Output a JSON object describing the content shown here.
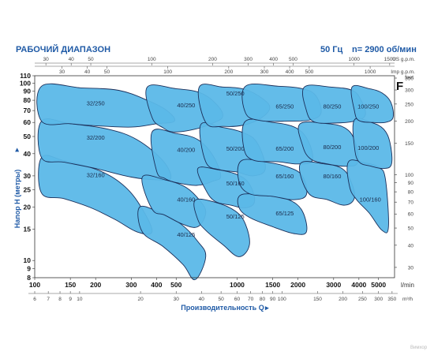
{
  "header": {
    "title": "РАБОЧИЙ ДИАПАЗОН",
    "frequency": "50 Гц",
    "speed": "n= 2900 об/мин",
    "corner_letter": "F",
    "watermark": "Вимхор"
  },
  "chart_data": {
    "type": "area",
    "xscale": "log",
    "yscale": "log",
    "x_unit": "l/min",
    "y_unit": "m",
    "xlim": [
      100,
      6000
    ],
    "ylim": [
      8,
      110
    ],
    "xlabel": "Производительность Q",
    "ylabel": "Напор H (метры)",
    "grid": false,
    "bottom_ticks_lmin": [
      100,
      150,
      200,
      300,
      400,
      500,
      1000,
      1500,
      2000,
      3000,
      4000,
      5000
    ],
    "bottom_unit_label": "l/min",
    "m3h_ticks": [
      6,
      7,
      8,
      9,
      10,
      20,
      30,
      40,
      50,
      60,
      70,
      80,
      90,
      100,
      150,
      200,
      250,
      300,
      350
    ],
    "m3h_label": "m³/h",
    "us_gpm_ticks": [
      30,
      40,
      50,
      100,
      200,
      300,
      400,
      500,
      1000,
      1500
    ],
    "us_gpm_label": "US g.p.m.",
    "imp_gpm_ticks": [
      20,
      30,
      40,
      50,
      100,
      200,
      300,
      400,
      500,
      1000
    ],
    "imp_gpm_label": "Imp g.p.m.",
    "left_ticks_m": [
      8,
      9,
      10,
      15,
      20,
      25,
      30,
      40,
      50,
      60,
      70,
      80,
      90,
      100,
      110
    ],
    "feet_ticks": [
      30,
      40,
      50,
      60,
      70,
      80,
      90,
      100,
      150,
      200,
      250,
      300,
      350
    ],
    "feet_label": "feet",
    "regions": [
      {
        "label": "32/160",
        "polygon": [
          [
            108,
            38
          ],
          [
            140,
            36.5
          ],
          [
            210,
            32
          ],
          [
            280,
            26
          ],
          [
            340,
            19.5
          ],
          [
            380,
            14.5
          ],
          [
            320,
            14.5
          ],
          [
            250,
            17
          ],
          [
            190,
            19.8
          ],
          [
            140,
            22.3
          ],
          [
            108,
            24
          ]
        ]
      },
      {
        "label": "32/200",
        "polygon": [
          [
            108,
            61
          ],
          [
            150,
            59
          ],
          [
            230,
            55
          ],
          [
            320,
            48
          ],
          [
            430,
            36.5
          ],
          [
            470,
            29
          ],
          [
            400,
            28.5
          ],
          [
            300,
            29.5
          ],
          [
            200,
            33
          ],
          [
            140,
            35.8
          ],
          [
            108,
            38
          ]
        ]
      },
      {
        "label": "32/250",
        "polygon": [
          [
            108,
            96
          ],
          [
            170,
            94
          ],
          [
            260,
            91
          ],
          [
            360,
            80
          ],
          [
            450,
            70
          ],
          [
            490,
            61
          ],
          [
            400,
            59
          ],
          [
            300,
            56.5
          ],
          [
            200,
            57.5
          ],
          [
            150,
            59
          ],
          [
            108,
            61
          ]
        ]
      },
      {
        "label": "40/125",
        "polygon": [
          [
            330,
            20
          ],
          [
            420,
            18.5
          ],
          [
            530,
            16
          ],
          [
            640,
            12.8
          ],
          [
            700,
            10.5
          ],
          [
            620,
            7.8
          ],
          [
            540,
            9.5
          ],
          [
            430,
            12
          ],
          [
            340,
            14.5
          ]
        ]
      },
      {
        "label": "40/160",
        "polygon": [
          [
            340,
            29.5
          ],
          [
            440,
            28.5
          ],
          [
            560,
            25.8
          ],
          [
            660,
            21.5
          ],
          [
            700,
            18.5
          ],
          [
            640,
            15.5
          ],
          [
            540,
            16
          ],
          [
            440,
            18
          ],
          [
            380,
            19.5
          ]
        ]
      },
      {
        "label": "40/200",
        "polygon": [
          [
            380,
            53
          ],
          [
            500,
            52
          ],
          [
            640,
            48
          ],
          [
            760,
            39
          ],
          [
            830,
            30
          ],
          [
            760,
            28
          ],
          [
            630,
            26.5
          ],
          [
            500,
            27.5
          ],
          [
            440,
            29
          ],
          [
            400,
            32
          ]
        ]
      },
      {
        "label": "40/250",
        "polygon": [
          [
            360,
            95
          ],
          [
            500,
            93
          ],
          [
            660,
            88
          ],
          [
            790,
            76
          ],
          [
            850,
            65
          ],
          [
            760,
            59.5
          ],
          [
            620,
            55
          ],
          [
            490,
            53
          ],
          [
            430,
            56
          ],
          [
            380,
            64
          ]
        ]
      },
      {
        "label": "50/125",
        "polygon": [
          [
            620,
            21.8
          ],
          [
            780,
            21.3
          ],
          [
            980,
            19
          ],
          [
            1100,
            16
          ],
          [
            1150,
            12.2
          ],
          [
            1020,
            10.5
          ],
          [
            850,
            12.3
          ],
          [
            700,
            14.8
          ],
          [
            640,
            17
          ]
        ]
      },
      {
        "label": "50/160",
        "polygon": [
          [
            640,
            33
          ],
          [
            800,
            32.5
          ],
          [
            1000,
            30.5
          ],
          [
            1150,
            27
          ],
          [
            1220,
            21.5
          ],
          [
            1100,
            19.8
          ],
          [
            930,
            20.5
          ],
          [
            780,
            21.5
          ],
          [
            700,
            25
          ]
        ]
      },
      {
        "label": "50/200",
        "polygon": [
          [
            660,
            58
          ],
          [
            830,
            56.5
          ],
          [
            1050,
            53
          ],
          [
            1250,
            46.5
          ],
          [
            1380,
            33
          ],
          [
            1200,
            30
          ],
          [
            1000,
            31.5
          ],
          [
            820,
            32.5
          ],
          [
            700,
            36
          ]
        ]
      },
      {
        "label": "50/250",
        "polygon": [
          [
            650,
            95
          ],
          [
            850,
            95
          ],
          [
            1100,
            92
          ],
          [
            1350,
            81
          ],
          [
            1450,
            72
          ],
          [
            1300,
            63
          ],
          [
            1080,
            58
          ],
          [
            860,
            57
          ],
          [
            700,
            60
          ]
        ]
      },
      {
        "label": "65/125",
        "polygon": [
          [
            1050,
            23.5
          ],
          [
            1400,
            23.2
          ],
          [
            1800,
            22
          ],
          [
            2100,
            19
          ],
          [
            2200,
            14.5
          ],
          [
            1900,
            14.2
          ],
          [
            1500,
            15.5
          ],
          [
            1150,
            17.5
          ],
          [
            1020,
            20
          ]
        ]
      },
      {
        "label": "65/160",
        "polygon": [
          [
            1050,
            36.5
          ],
          [
            1400,
            35.8
          ],
          [
            1800,
            33.5
          ],
          [
            2100,
            30
          ],
          [
            2200,
            23.5
          ],
          [
            1900,
            22
          ],
          [
            1500,
            23
          ],
          [
            1150,
            23.8
          ],
          [
            1020,
            28
          ]
        ]
      },
      {
        "label": "65/200",
        "polygon": [
          [
            1100,
            61
          ],
          [
            1500,
            60
          ],
          [
            1950,
            56
          ],
          [
            2250,
            47
          ],
          [
            2350,
            36.5
          ],
          [
            2000,
            35
          ],
          [
            1600,
            36
          ],
          [
            1200,
            36.8
          ],
          [
            1080,
            43
          ]
        ]
      },
      {
        "label": "65/250",
        "polygon": [
          [
            1100,
            96
          ],
          [
            1600,
            96
          ],
          [
            2100,
            93
          ],
          [
            2450,
            85
          ],
          [
            2600,
            68
          ],
          [
            2300,
            62
          ],
          [
            1800,
            61
          ],
          [
            1300,
            61.5
          ],
          [
            1100,
            68
          ]
        ]
      },
      {
        "label": "80/160",
        "polygon": [
          [
            2050,
            35
          ],
          [
            2700,
            35
          ],
          [
            3300,
            33
          ],
          [
            3650,
            28
          ],
          [
            3800,
            22.5
          ],
          [
            3400,
            20.5
          ],
          [
            2800,
            22
          ],
          [
            2250,
            24
          ]
        ]
      },
      {
        "label": "80/200",
        "polygon": [
          [
            2050,
            59
          ],
          [
            2800,
            59
          ],
          [
            3400,
            56
          ],
          [
            3800,
            48
          ],
          [
            3950,
            36
          ],
          [
            3500,
            34
          ],
          [
            2800,
            35
          ],
          [
            2300,
            37.5
          ],
          [
            2100,
            45
          ]
        ]
      },
      {
        "label": "80/250",
        "polygon": [
          [
            2150,
            95
          ],
          [
            2900,
            95
          ],
          [
            3700,
            91
          ],
          [
            4100,
            80
          ],
          [
            4300,
            66
          ],
          [
            3800,
            61
          ],
          [
            3000,
            59.5
          ],
          [
            2400,
            60.5
          ],
          [
            2200,
            70
          ]
        ]
      },
      {
        "label": "100/160",
        "polygon": [
          [
            3550,
            36
          ],
          [
            4300,
            35.5
          ],
          [
            5000,
            33.5
          ],
          [
            5400,
            29
          ],
          [
            5600,
            15.5
          ],
          [
            5200,
            14.8
          ],
          [
            4500,
            18.5
          ],
          [
            3900,
            22
          ],
          [
            3600,
            26
          ]
        ]
      },
      {
        "label": "100/200",
        "polygon": [
          [
            3800,
            62
          ],
          [
            4600,
            60
          ],
          [
            5300,
            55
          ],
          [
            5700,
            46
          ],
          [
            5800,
            35
          ],
          [
            5300,
            33
          ],
          [
            4600,
            34
          ],
          [
            4000,
            36
          ],
          [
            3800,
            44
          ]
        ]
      },
      {
        "label": "100/250",
        "polygon": [
          [
            3700,
            95
          ],
          [
            4500,
            93
          ],
          [
            5200,
            88
          ],
          [
            5750,
            78
          ],
          [
            5900,
            64
          ],
          [
            5400,
            60
          ],
          [
            4700,
            60
          ],
          [
            4000,
            61.5
          ],
          [
            3800,
            70
          ]
        ]
      }
    ],
    "label_positions": [
      {
        "label": "32/250",
        "x": 200,
        "y": 75
      },
      {
        "label": "32/200",
        "x": 200,
        "y": 48
      },
      {
        "label": "32/160",
        "x": 200,
        "y": 29.5
      },
      {
        "label": "40/250",
        "x": 560,
        "y": 73
      },
      {
        "label": "40/200",
        "x": 560,
        "y": 41
      },
      {
        "label": "40/160",
        "x": 560,
        "y": 21.5
      },
      {
        "label": "40/125",
        "x": 560,
        "y": 13.6
      },
      {
        "label": "50/250",
        "x": 980,
        "y": 85
      },
      {
        "label": "50/200",
        "x": 980,
        "y": 41.5
      },
      {
        "label": "50/160",
        "x": 980,
        "y": 26.5
      },
      {
        "label": "50/125",
        "x": 980,
        "y": 17.2
      },
      {
        "label": "65/250",
        "x": 1720,
        "y": 72
      },
      {
        "label": "65/200",
        "x": 1720,
        "y": 41.5
      },
      {
        "label": "65/160",
        "x": 1720,
        "y": 29
      },
      {
        "label": "65/125",
        "x": 1720,
        "y": 18
      },
      {
        "label": "80/250",
        "x": 2950,
        "y": 72
      },
      {
        "label": "80/200",
        "x": 2950,
        "y": 42.5
      },
      {
        "label": "80/160",
        "x": 2950,
        "y": 29
      },
      {
        "label": "100/250",
        "x": 4450,
        "y": 72
      },
      {
        "label": "100/200",
        "x": 4450,
        "y": 42
      },
      {
        "label": "100/160",
        "x": 4550,
        "y": 21.5
      }
    ],
    "colors": {
      "region_fill": "#5bb8e8",
      "region_stroke": "#1b2f5a",
      "title_blue": "#1f5aa6",
      "frame": "#333333"
    }
  }
}
